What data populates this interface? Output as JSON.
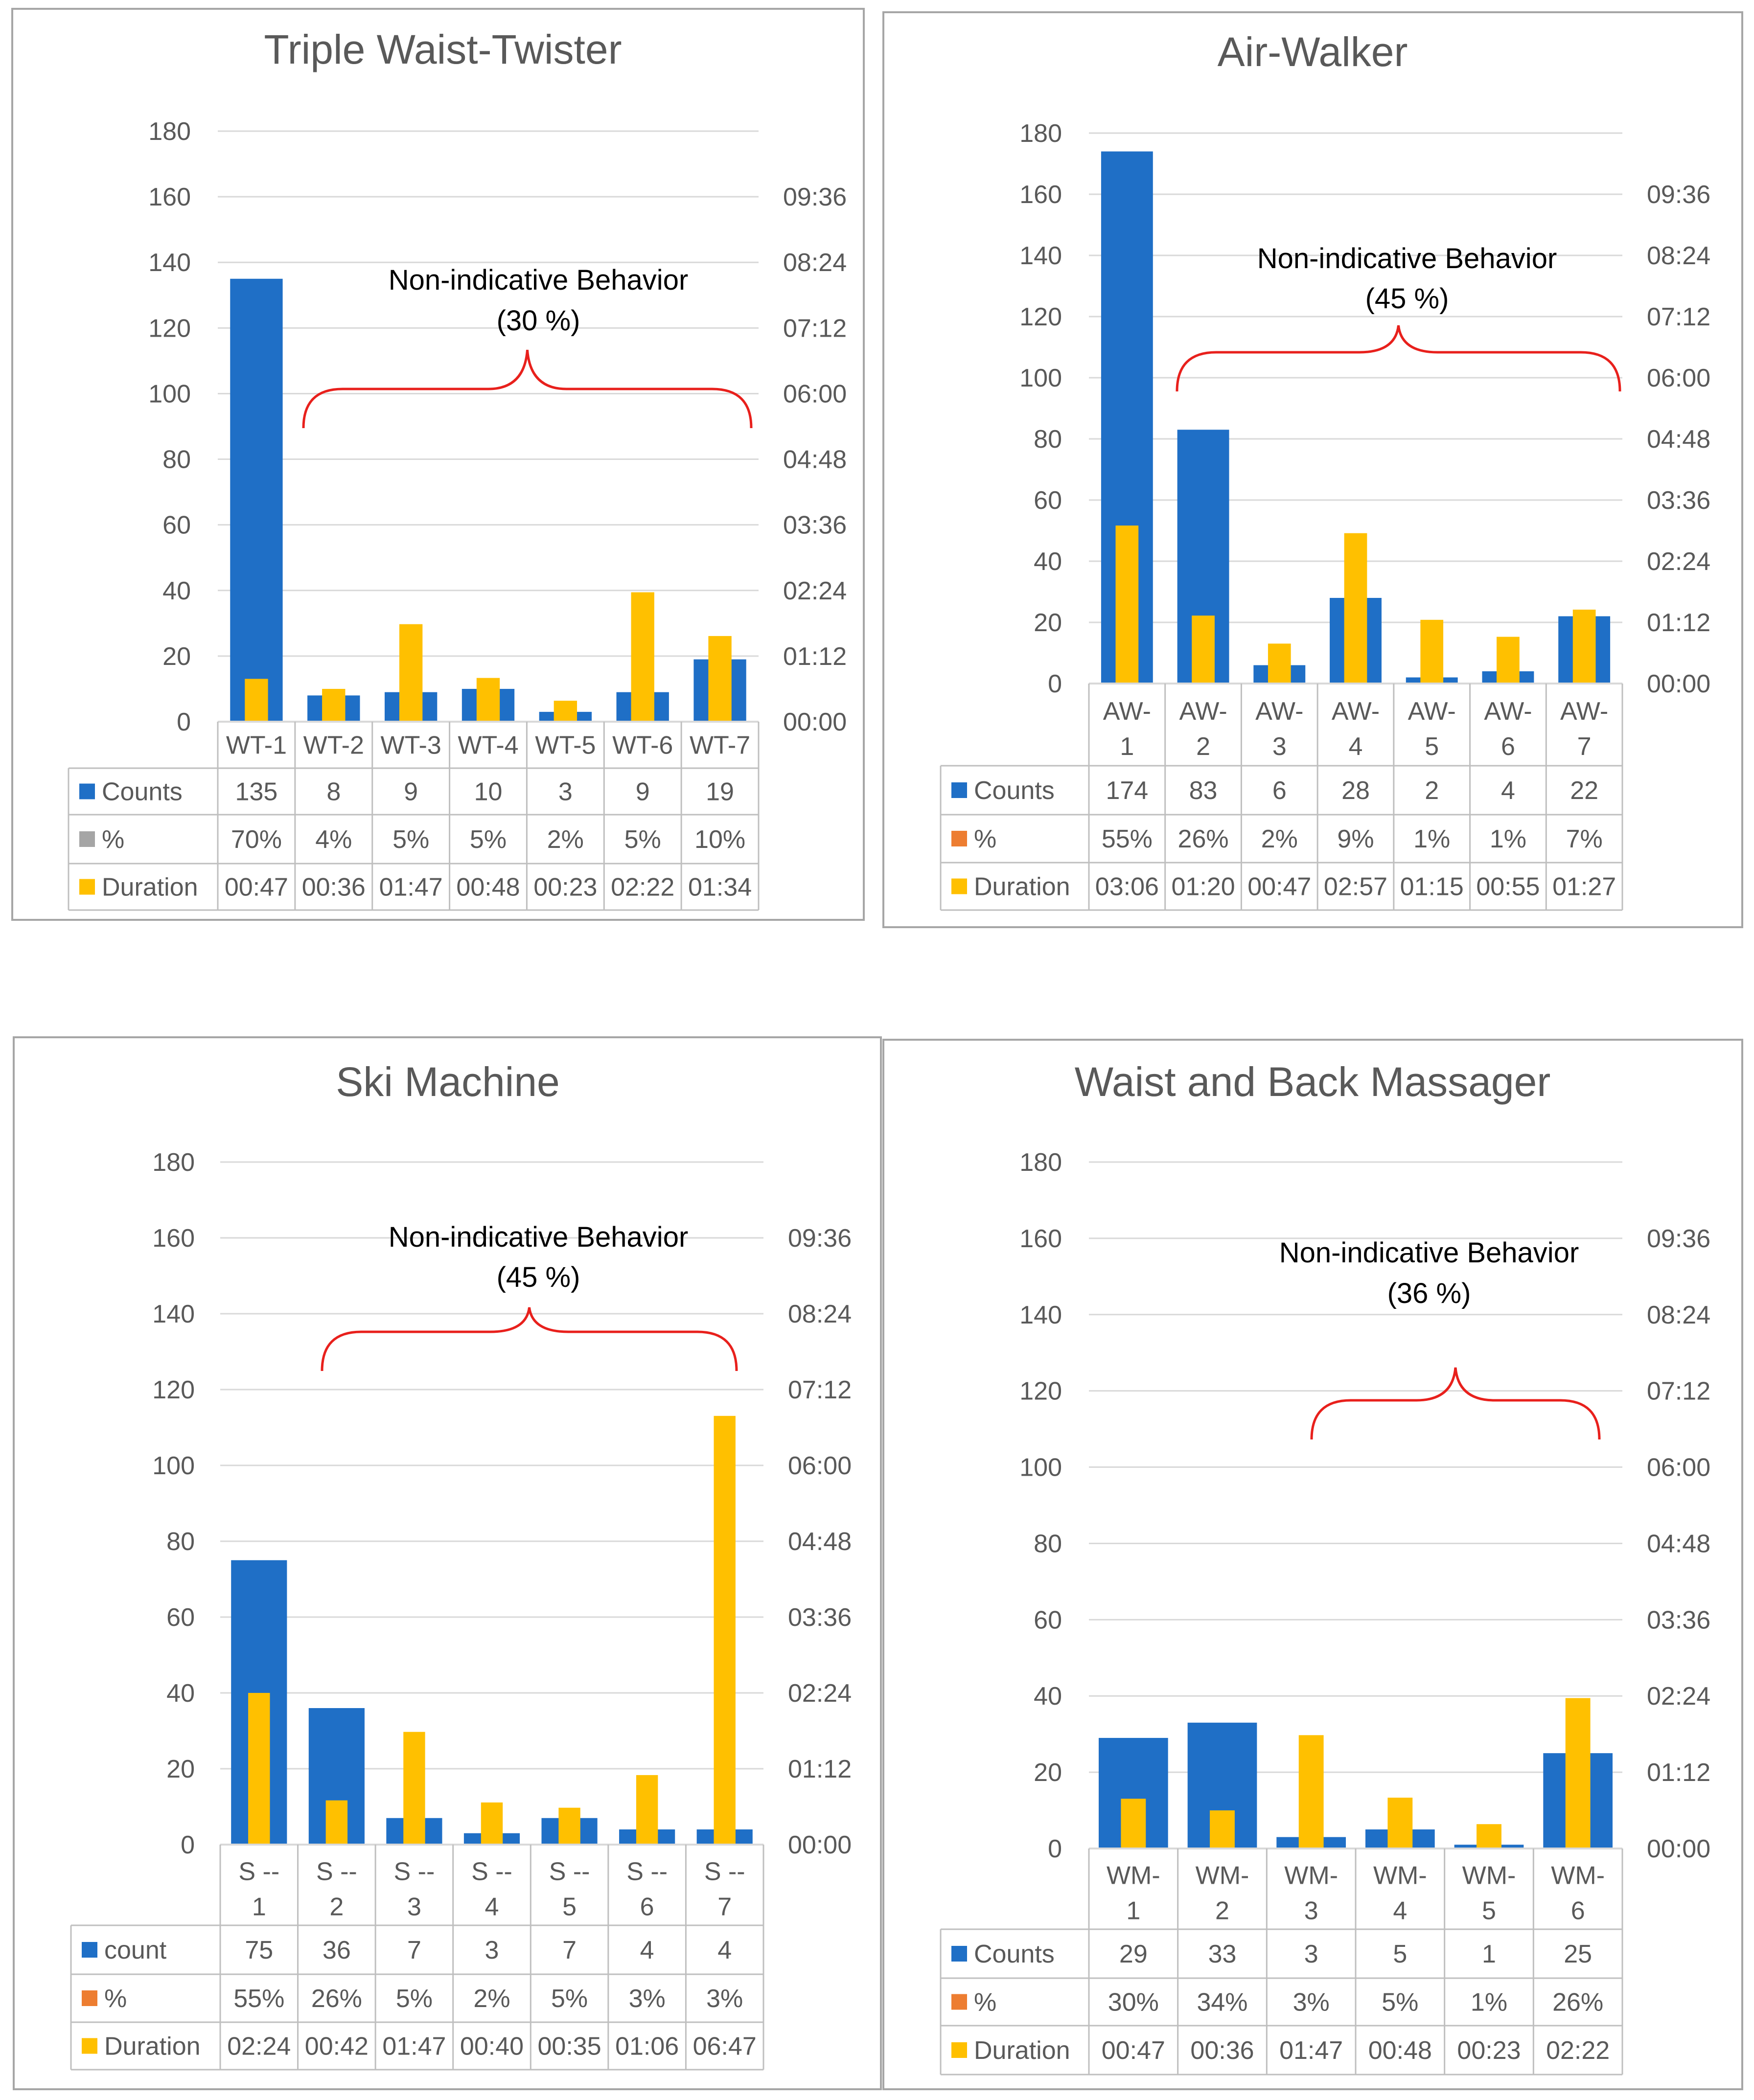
{
  "colors": {
    "counts": "#1f6fc6",
    "duration": "#ffc000",
    "percent_gray": "#a5a5a5",
    "percent_orange": "#ed7d31",
    "brace": "#e8201c",
    "axis_text": "#595959",
    "grid": "#d9d9d9"
  },
  "chart_data": [
    {
      "type": "bar",
      "title": "Triple Waist-Twister",
      "categories": [
        "WT-1",
        "WT-2",
        "WT-3",
        "WT-4",
        "WT-5",
        "WT-6",
        "WT-7"
      ],
      "y_ticks": [
        "180",
        "160",
        "140",
        "120",
        "100",
        "80",
        "60",
        "40",
        "20",
        "0"
      ],
      "y2_ticks": [
        "09:36",
        "08:24",
        "07:12",
        "06:00",
        "04:48",
        "03:36",
        "02:24",
        "01:12",
        "00:00"
      ],
      "ylim": [
        0,
        180
      ],
      "y2lim_seconds": [
        0,
        648
      ],
      "counts": [
        135,
        8,
        9,
        10,
        3,
        9,
        19
      ],
      "duration_seconds": [
        47,
        36,
        107,
        48,
        23,
        142,
        94
      ],
      "annotation": "Non-indicative Behavior",
      "annotation_pct": "(30 %)",
      "percent_marker": "gray",
      "table": [
        {
          "label": "Counts",
          "values": [
            "135",
            "8",
            "9",
            "10",
            "3",
            "9",
            "19"
          ]
        },
        {
          "label": "%",
          "values": [
            "70%",
            "4%",
            "5%",
            "5%",
            "2%",
            "5%",
            "10%"
          ]
        },
        {
          "label": "Duration",
          "values": [
            "00:47",
            "00:36",
            "01:47",
            "00:48",
            "00:23",
            "02:22",
            "01:34"
          ]
        }
      ]
    },
    {
      "type": "bar",
      "title": "Air-Walker",
      "categories": [
        "AW-1",
        "AW-2",
        "AW-3",
        "AW-4",
        "AW-5",
        "AW-6",
        "AW-7"
      ],
      "y_ticks": [
        "180",
        "160",
        "140",
        "120",
        "100",
        "80",
        "60",
        "40",
        "20",
        "0"
      ],
      "y2_ticks": [
        "09:36",
        "08:24",
        "07:12",
        "06:00",
        "04:48",
        "03:36",
        "02:24",
        "01:12",
        "00:00"
      ],
      "ylim": [
        0,
        180
      ],
      "y2lim_seconds": [
        0,
        648
      ],
      "counts": [
        174,
        83,
        6,
        28,
        2,
        4,
        22
      ],
      "duration_seconds": [
        186,
        80,
        47,
        177,
        75,
        55,
        87
      ],
      "annotation": "Non-indicative Behavior",
      "annotation_pct": "(45 %)",
      "percent_marker": "orange",
      "table": [
        {
          "label": "Counts",
          "values": [
            "174",
            "83",
            "6",
            "28",
            "2",
            "4",
            "22"
          ]
        },
        {
          "label": "%",
          "values": [
            "55%",
            "26%",
            "2%",
            "9%",
            "1%",
            "1%",
            "7%"
          ]
        },
        {
          "label": "Duration",
          "values": [
            "03:06",
            "01:20",
            "00:47",
            "02:57",
            "01:15",
            "00:55",
            "01:27"
          ]
        }
      ]
    },
    {
      "type": "bar",
      "title": "Ski Machine",
      "categories": [
        "S -- 1",
        "S -- 2",
        "S -- 3",
        "S -- 4",
        "S -- 5",
        "S -- 6",
        "S -- 7"
      ],
      "y_ticks": [
        "180",
        "160",
        "140",
        "120",
        "100",
        "80",
        "60",
        "40",
        "20",
        "0"
      ],
      "y2_ticks": [
        "09:36",
        "08:24",
        "07:12",
        "06:00",
        "04:48",
        "03:36",
        "02:24",
        "01:12",
        "00:00"
      ],
      "ylim": [
        0,
        180
      ],
      "y2lim_seconds": [
        0,
        648
      ],
      "counts": [
        75,
        36,
        7,
        3,
        7,
        4,
        4
      ],
      "duration_seconds": [
        144,
        42,
        107,
        40,
        35,
        66,
        407
      ],
      "annotation": "Non-indicative Behavior",
      "annotation_pct": "(45 %)",
      "percent_marker": "orange",
      "table": [
        {
          "label": "count",
          "values": [
            "75",
            "36",
            "7",
            "3",
            "7",
            "4",
            "4"
          ]
        },
        {
          "label": "%",
          "values": [
            "55%",
            "26%",
            "5%",
            "2%",
            "5%",
            "3%",
            "3%"
          ]
        },
        {
          "label": "Duration",
          "values": [
            "02:24",
            "00:42",
            "01:47",
            "00:40",
            "00:35",
            "01:06",
            "06:47"
          ]
        }
      ]
    },
    {
      "type": "bar",
      "title": "Waist and Back Massager",
      "categories": [
        "WM-1",
        "WM-2",
        "WM-3",
        "WM-4",
        "WM-5",
        "WM-6"
      ],
      "y_ticks": [
        "180",
        "160",
        "140",
        "120",
        "100",
        "80",
        "60",
        "40",
        "20",
        "0"
      ],
      "y2_ticks": [
        "09:36",
        "08:24",
        "07:12",
        "06:00",
        "04:48",
        "03:36",
        "02:24",
        "01:12",
        "00:00"
      ],
      "ylim": [
        0,
        180
      ],
      "y2lim_seconds": [
        0,
        648
      ],
      "counts": [
        29,
        33,
        3,
        5,
        1,
        25
      ],
      "duration_seconds": [
        47,
        36,
        107,
        48,
        23,
        142
      ],
      "annotation": "Non-indicative Behavior",
      "annotation_pct": "(36 %)",
      "percent_marker": "orange",
      "table": [
        {
          "label": "Counts",
          "values": [
            "29",
            "33",
            "3",
            "5",
            "1",
            "25"
          ]
        },
        {
          "label": "%",
          "values": [
            "30%",
            "34%",
            "3%",
            "5%",
            "1%",
            "26%"
          ]
        },
        {
          "label": "Duration",
          "values": [
            "00:47",
            "00:36",
            "01:47",
            "00:48",
            "00:23",
            "02:22"
          ]
        }
      ]
    }
  ]
}
